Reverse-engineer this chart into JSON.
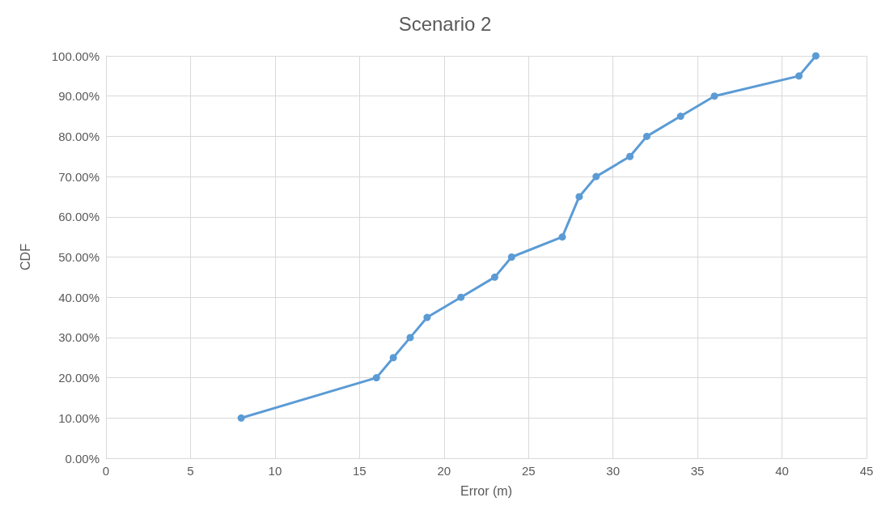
{
  "chart_data": {
    "type": "line",
    "title": "Scenario 2",
    "xlabel": "Error (m)",
    "ylabel": "CDF",
    "x": [
      8,
      16,
      17,
      18,
      19,
      21,
      23,
      24,
      27,
      28,
      29,
      31,
      32,
      34,
      36,
      41,
      42
    ],
    "series": [
      {
        "color": "#5b9bd5",
        "values": [
          10,
          20,
          25,
          30,
          35,
          40,
          45,
          50,
          55,
          65,
          70,
          75,
          80,
          85,
          90,
          95,
          100
        ]
      }
    ],
    "xlim": [
      0,
      45
    ],
    "xticks": [
      0,
      5,
      10,
      15,
      20,
      25,
      30,
      35,
      40,
      45
    ],
    "ylim": [
      0,
      100
    ],
    "yticks": [
      {
        "value": 0,
        "label": "0.00%"
      },
      {
        "value": 10,
        "label": "10.00%"
      },
      {
        "value": 20,
        "label": "20.00%"
      },
      {
        "value": 30,
        "label": "30.00%"
      },
      {
        "value": 40,
        "label": "40.00%"
      },
      {
        "value": 50,
        "label": "50.00%"
      },
      {
        "value": 60,
        "label": "60.00%"
      },
      {
        "value": 70,
        "label": "70.00%"
      },
      {
        "value": 80,
        "label": "80.00%"
      },
      {
        "value": 90,
        "label": "90.00%"
      },
      {
        "value": 100,
        "label": "100.00%"
      }
    ],
    "grid": true,
    "marker": "circle",
    "line_style": "solid"
  }
}
